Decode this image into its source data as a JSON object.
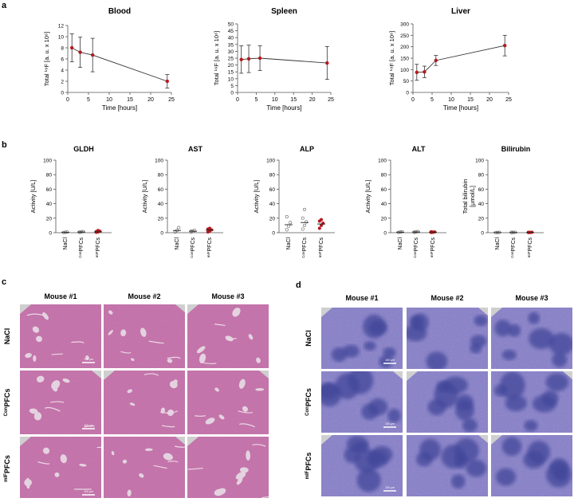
{
  "panels": {
    "a": "a",
    "b": "b",
    "c": "c",
    "d": "d"
  },
  "colors": {
    "marker": "#b4181d",
    "line": "#333333",
    "he_pink": "#c06aa4",
    "he_light": "#d9a0c8",
    "spleen_purple": "#7d7fc4",
    "spleen_dark": "#42479a"
  },
  "time_charts": [
    {
      "title": "Blood",
      "ylabel": "Total ¹⁹F [a. u. x 10⁸]",
      "xlabel": "Time [hours]",
      "yticks": [
        "0",
        "2",
        "4",
        "6",
        "8",
        "10",
        "12"
      ],
      "xticks": [
        "0",
        "5",
        "10",
        "15",
        "20",
        "25"
      ]
    },
    {
      "title": "Spleen",
      "ylabel": "Total ¹⁹F [a. u. x 10⁸]",
      "xlabel": "Time [hours]",
      "yticks": [
        "0",
        "5",
        "10",
        "15",
        "20",
        "25",
        "30",
        "35",
        "40",
        "45",
        "50"
      ],
      "xticks": [
        "0",
        "5",
        "10",
        "15",
        "20",
        "25"
      ]
    },
    {
      "title": "Liver",
      "ylabel": "Total ¹⁹F [a. u. x 10⁸]",
      "xlabel": "Time [hours]",
      "yticks": [
        "0",
        "50",
        "100",
        "150",
        "200",
        "250",
        "300"
      ],
      "xticks": [
        "0",
        "5",
        "10",
        "15",
        "20",
        "25"
      ]
    }
  ],
  "enzyme_charts": [
    {
      "title": "GLDH",
      "ylabel": "Activity [U/L]",
      "ylabel2": ""
    },
    {
      "title": "AST",
      "ylabel": "Activity [U/L]",
      "ylabel2": ""
    },
    {
      "title": "ALP",
      "ylabel": "Activity [U/L]",
      "ylabel2": ""
    },
    {
      "title": "ALT",
      "ylabel": "Activity [U/L]",
      "ylabel2": ""
    },
    {
      "title": "Bilirubin",
      "ylabel": "Total bilirubin",
      "ylabel2": "[µmol/L]"
    }
  ],
  "enzyme_yticks": [
    "0",
    "20",
    "40",
    "60",
    "80",
    "100"
  ],
  "enzyme_groups": [
    {
      "pre": "",
      "main": "NaCl"
    },
    {
      "pre": "Con",
      "main": "PFCs"
    },
    {
      "pre": "mIF",
      "main": "PFCs"
    }
  ],
  "histology": {
    "columns": [
      "Mouse #1",
      "Mouse #2",
      "Mouse #3"
    ],
    "rows": [
      {
        "pre": "",
        "main": "NaCl"
      },
      {
        "pre": "Con",
        "main": "PFCs"
      },
      {
        "pre": "mIF",
        "main": "PFCs"
      }
    ],
    "scale_bar": "100 µm"
  },
  "chart_data": [
    {
      "type": "scatter",
      "title": "Blood",
      "xlabel": "Time [hours]",
      "ylabel": "Total ¹⁹F [a. u. x 10⁸]",
      "xlim": [
        0,
        25
      ],
      "ylim": [
        0,
        12
      ],
      "series": [
        {
          "x": [
            1,
            3,
            6,
            24
          ],
          "y": [
            8.0,
            7.2,
            6.7,
            2.0
          ],
          "err": [
            2.5,
            2.7,
            3.0,
            1.2
          ]
        }
      ]
    },
    {
      "type": "scatter",
      "title": "Spleen",
      "xlabel": "Time [hours]",
      "ylabel": "Total ¹⁹F [a. u. x 10⁸]",
      "xlim": [
        0,
        25
      ],
      "ylim": [
        0,
        50
      ],
      "series": [
        {
          "x": [
            1,
            3,
            6,
            24
          ],
          "y": [
            24,
            24.5,
            25,
            21.5
          ],
          "err": [
            10,
            10,
            9,
            12
          ]
        }
      ]
    },
    {
      "type": "scatter",
      "title": "Liver",
      "xlabel": "Time [hours]",
      "ylabel": "Total ¹⁹F [a. u. x 10⁸]",
      "xlim": [
        0,
        25
      ],
      "ylim": [
        0,
        300
      ],
      "series": [
        {
          "x": [
            1,
            3,
            6,
            24
          ],
          "y": [
            88,
            90,
            140,
            205
          ],
          "err": [
            35,
            25,
            22,
            45
          ]
        }
      ]
    },
    {
      "type": "scatter",
      "title": "GLDH",
      "ylabel": "Activity [U/L]",
      "ylim": [
        0,
        100
      ],
      "categories": [
        "NaCl",
        "ConPFCs",
        "mIFPFCs"
      ],
      "groups": [
        {
          "mean": 0.5,
          "points": [
            0.3,
            0.6,
            0.8
          ]
        },
        {
          "mean": 1.0,
          "points": [
            0.5,
            1.0,
            1.5,
            0.8
          ]
        },
        {
          "mean": 1.2,
          "points": [
            0.5,
            1.0,
            2.0,
            1.5,
            3.0
          ]
        }
      ]
    },
    {
      "type": "scatter",
      "title": "AST",
      "ylabel": "Activity [U/L]",
      "ylim": [
        0,
        100
      ],
      "categories": [
        "NaCl",
        "ConPFCs",
        "mIFPFCs"
      ],
      "groups": [
        {
          "mean": 3,
          "points": [
            1,
            3,
            7
          ]
        },
        {
          "mean": 2,
          "points": [
            1,
            2,
            3,
            2
          ]
        },
        {
          "mean": 3.5,
          "points": [
            1,
            2,
            4,
            5,
            6
          ]
        }
      ]
    },
    {
      "type": "scatter",
      "title": "ALP",
      "ylabel": "Activity [U/L]",
      "ylim": [
        0,
        100
      ],
      "categories": [
        "NaCl",
        "ConPFCs",
        "mIFPFCs"
      ],
      "groups": [
        {
          "mean": 11,
          "points": [
            4,
            9,
            14,
            22
          ]
        },
        {
          "mean": 14,
          "points": [
            5,
            10,
            15,
            20,
            32
          ]
        },
        {
          "mean": 12,
          "points": [
            6,
            10,
            13,
            16,
            18
          ]
        }
      ]
    },
    {
      "type": "scatter",
      "title": "ALT",
      "ylabel": "Activity [U/L]",
      "ylim": [
        0,
        100
      ],
      "categories": [
        "NaCl",
        "ConPFCs",
        "mIFPFCs"
      ],
      "groups": [
        {
          "mean": 0.8,
          "points": [
            0.3,
            0.8,
            1.2
          ]
        },
        {
          "mean": 1.0,
          "points": [
            0.5,
            1.0,
            1.5,
            0.8
          ]
        },
        {
          "mean": 0.8,
          "points": [
            0.3,
            0.6,
            1.0,
            1.2,
            0.8
          ]
        }
      ]
    },
    {
      "type": "scatter",
      "title": "Bilirubin",
      "ylabel": "Total bilirubin [µmol/L]",
      "ylim": [
        0,
        100
      ],
      "categories": [
        "NaCl",
        "ConPFCs",
        "mIFPFCs"
      ],
      "groups": [
        {
          "mean": 0.3,
          "points": [
            0.2,
            0.3,
            0.4
          ]
        },
        {
          "mean": 0.4,
          "points": [
            0.2,
            0.4,
            0.6,
            0.5
          ]
        },
        {
          "mean": 0.4,
          "points": [
            0.2,
            0.3,
            0.5,
            0.6,
            0.4
          ]
        }
      ]
    }
  ]
}
